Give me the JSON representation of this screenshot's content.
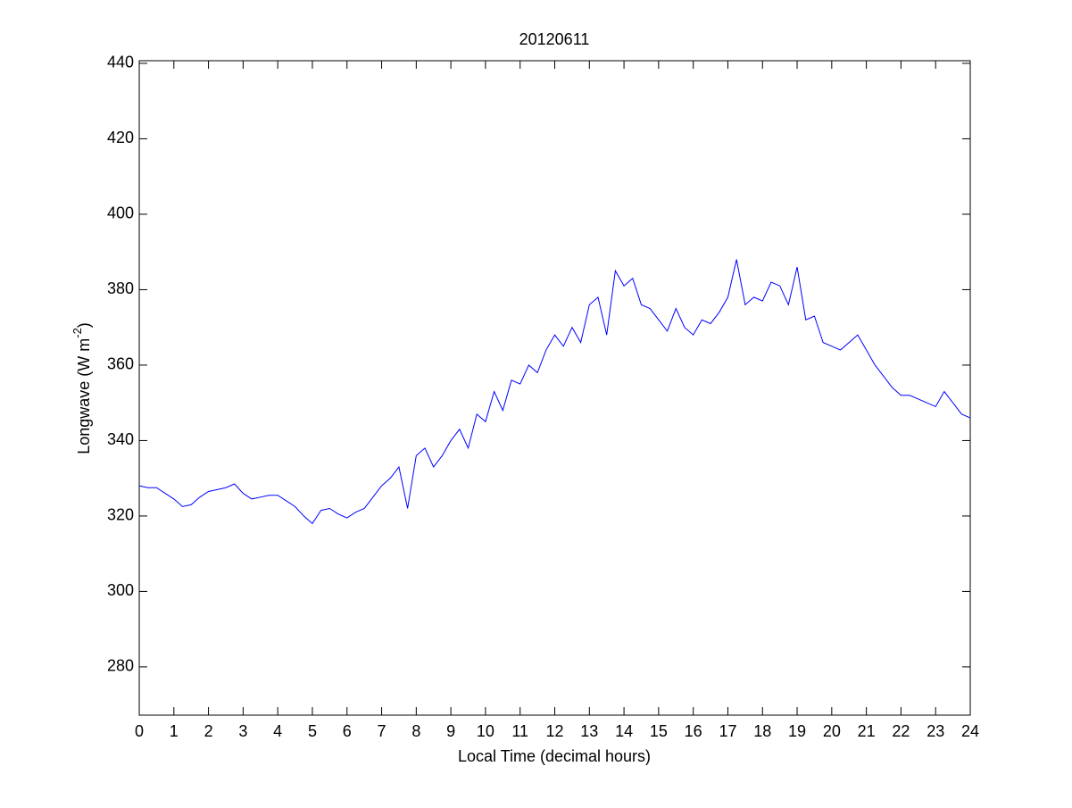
{
  "chart_data": {
    "type": "line",
    "title": "20120611",
    "xlabel": "Local Time (decimal hours)",
    "ylabel": [
      "Longwave (W m",
      "-2",
      ")"
    ],
    "xlim": [
      0,
      24
    ],
    "xticks": [
      0,
      1,
      2,
      3,
      4,
      5,
      6,
      7,
      8,
      9,
      10,
      11,
      12,
      13,
      14,
      15,
      16,
      17,
      18,
      19,
      20,
      21,
      22,
      23,
      24
    ],
    "ylim": [
      267.2,
      440.7
    ],
    "yticks": [
      280,
      300,
      320,
      340,
      360,
      380,
      400,
      420,
      440
    ],
    "grid": false,
    "x": [
      0,
      0.25,
      0.5,
      0.75,
      1,
      1.25,
      1.5,
      1.75,
      2,
      2.25,
      2.5,
      2.75,
      3,
      3.25,
      3.5,
      3.75,
      4,
      4.25,
      4.5,
      4.75,
      5,
      5.25,
      5.5,
      5.75,
      6,
      6.25,
      6.5,
      6.75,
      7,
      7.25,
      7.5,
      7.75,
      8,
      8.25,
      8.5,
      8.75,
      9,
      9.25,
      9.5,
      9.75,
      10,
      10.25,
      10.5,
      10.75,
      11,
      11.25,
      11.5,
      11.75,
      12,
      12.25,
      12.5,
      12.75,
      13,
      13.25,
      13.5,
      13.75,
      14,
      14.25,
      14.5,
      14.75,
      15,
      15.25,
      15.5,
      15.75,
      16,
      16.25,
      16.5,
      16.75,
      17,
      17.25,
      17.5,
      17.75,
      18,
      18.25,
      18.5,
      18.75,
      19,
      19.25,
      19.5,
      19.75,
      20,
      20.25,
      20.5,
      20.75,
      21,
      21.25,
      21.5,
      21.75,
      22,
      22.25,
      22.5,
      22.75,
      23,
      23.25,
      23.5,
      23.75,
      24
    ],
    "series": [
      {
        "color": "#0000ff",
        "values": [
          328,
          327.5,
          327.5,
          326,
          324.5,
          322.5,
          323,
          325,
          326.5,
          327,
          327.5,
          328.5,
          326,
          324.5,
          325,
          325.5,
          325.5,
          324,
          322.5,
          320,
          318,
          321.5,
          322,
          320.5,
          319.5,
          321,
          322,
          325,
          328,
          330,
          333,
          322,
          336,
          338,
          333,
          336,
          340,
          343,
          338,
          347,
          345,
          353,
          348,
          356,
          355,
          360,
          358,
          364,
          368,
          365,
          370,
          366,
          376,
          378,
          368,
          385,
          381,
          383,
          376,
          375,
          372,
          369,
          375,
          370,
          368,
          372,
          371,
          374,
          378,
          388,
          376,
          378,
          377,
          382,
          381,
          376,
          386,
          372,
          373,
          366,
          365,
          364,
          366,
          368,
          364,
          360,
          357,
          354,
          352,
          352,
          351,
          350,
          349,
          353,
          350,
          347,
          346
        ]
      }
    ]
  }
}
